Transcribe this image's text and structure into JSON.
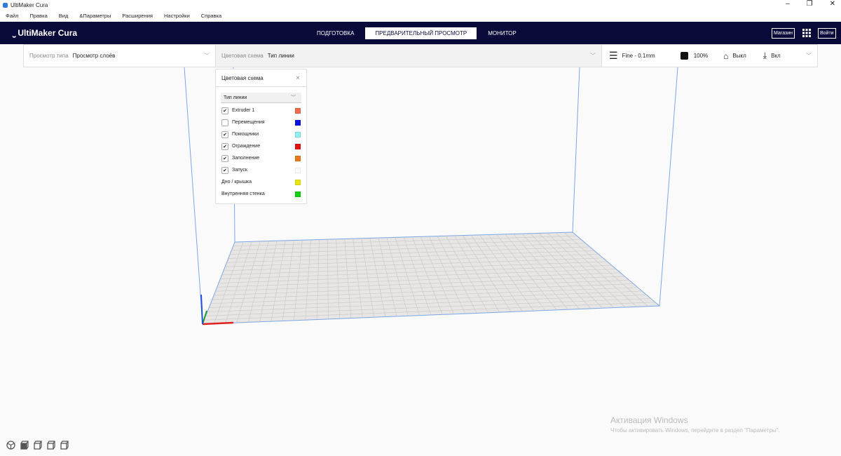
{
  "window": {
    "title": "UltiMaker Cura",
    "controls": [
      "–",
      "❐",
      "✕"
    ]
  },
  "menu": [
    "Файл",
    "Правка",
    "Вид",
    "&Параметры",
    "Расширения",
    "Настройки",
    "Справка"
  ],
  "header": {
    "logo": "UltiMaker Cura",
    "tabs": [
      {
        "label": "ПОДГОТОВКА",
        "active": false
      },
      {
        "label": "ПРЕДВАРИТЕЛЬНЫЙ ПРОСМОТР",
        "active": true
      },
      {
        "label": "МОНИТОР",
        "active": false
      }
    ],
    "marketplace": "Магазин",
    "signin": "Войти"
  },
  "toolbar": {
    "view_type_label": "Просмотр типа",
    "view_type_value": "Просмотр слоёв",
    "color_scheme_label": "Цветовая схема",
    "color_scheme_value": "Тип линии",
    "profile": "Fine - 0.1mm",
    "infill": "100%",
    "support": "Выкл",
    "adhesion": "Вкл"
  },
  "color_panel": {
    "title": "Цветовая схема",
    "selected": "Тип линии",
    "items": [
      {
        "label": "Extruder 1",
        "checkbox": true,
        "checked": true,
        "color": "#f26b4f"
      },
      {
        "label": "Перемещения",
        "checkbox": true,
        "checked": false,
        "color": "#0a10e0"
      },
      {
        "label": "Помощники",
        "checkbox": true,
        "checked": true,
        "color": "#8ef0f0"
      },
      {
        "label": "Ограждение",
        "checkbox": true,
        "checked": true,
        "color": "#e01010"
      },
      {
        "label": "Заполнение",
        "checkbox": true,
        "checked": true,
        "color": "#e87a1a"
      },
      {
        "label": "Запуск",
        "checkbox": true,
        "checked": true,
        "color": "#ffffff"
      },
      {
        "label": "Дно / крышка",
        "checkbox": false,
        "color": "#e6e610"
      },
      {
        "label": "Внутренняя стенка",
        "checkbox": false,
        "color": "#10d010"
      }
    ]
  },
  "watermark": {
    "line1": "Активация Windows",
    "line2": "Чтобы активировать Windows, перейдите в раздел \"Параметры\"."
  }
}
